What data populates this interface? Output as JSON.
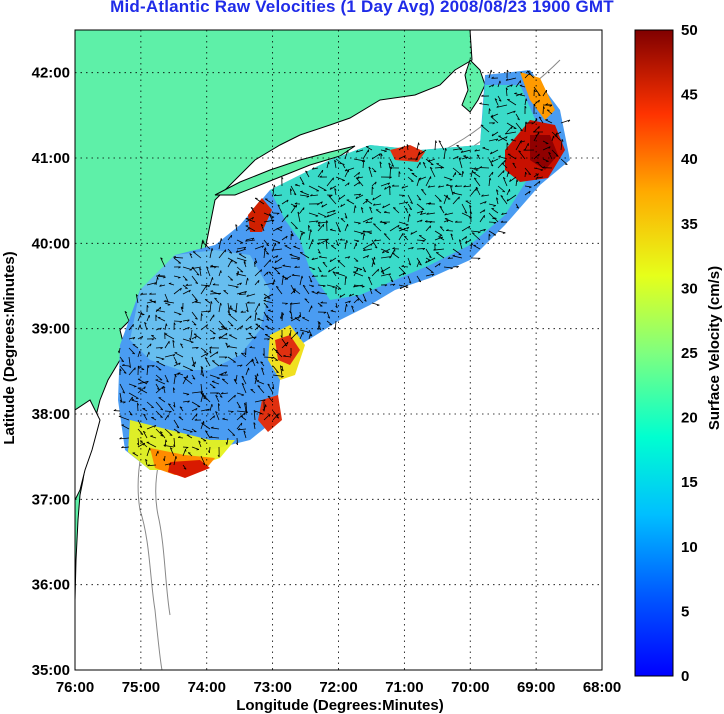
{
  "title": "Mid-Atlantic Raw Velocities (1 Day Avg) 2008/08/23 1900 GMT",
  "map": {
    "xlabel": "Longitude (Degrees:Minutes)",
    "ylabel": "Latitude (Degrees:Minutes)",
    "x_ticks": [
      "76:00",
      "75:00",
      "74:00",
      "73:00",
      "72:00",
      "71:00",
      "70:00",
      "69:00",
      "68:00"
    ],
    "y_ticks": [
      "42:00",
      "41:00",
      "40:00",
      "39:00",
      "38:00",
      "37:00",
      "36:00",
      "35:00"
    ],
    "lon_range": [
      -76,
      -68
    ],
    "lat_range": [
      35,
      42.5
    ],
    "land_color": "#5ef0a8",
    "grid": "dotted"
  },
  "colorbar": {
    "label": "Surface Velocity (cm/s)",
    "ticks": [
      "50",
      "45",
      "40",
      "35",
      "30",
      "25",
      "20",
      "15",
      "10",
      "5",
      "0"
    ],
    "range": [
      0,
      50
    ]
  }
}
